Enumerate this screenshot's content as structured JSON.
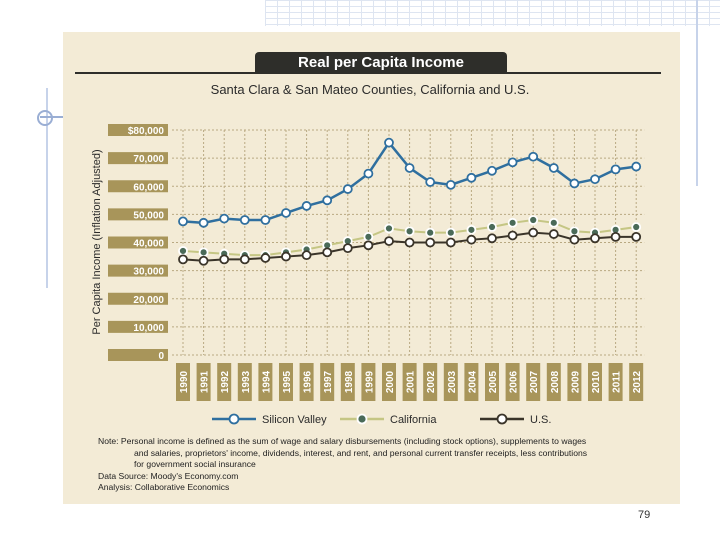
{
  "page_number": "79",
  "colors": {
    "silicon_valley": "#2f6f9f",
    "california": "#c5c684",
    "us": "#3a3429",
    "tick_label_bg": "#a8955a",
    "panel_bg": "#f3ebd6"
  },
  "notes": {
    "note_lead": "Note: Personal income is defined as the sum of wage and salary disbursements (including stock options), supplements to wages",
    "note_line2": "and salaries, proprietors' income, dividends, interest, and rent, and personal current transfer receipts, less contributions",
    "note_line3": "for government social insurance",
    "data_source": "Data Source: Moody's Economy.com",
    "analysis": "Analysis: Collaborative Economics"
  },
  "chart_data": {
    "type": "line",
    "title": "Real per Capita Income",
    "subtitle": "Santa Clara & San Mateo Counties, California and U.S.",
    "ylabel": "Per Capita Income (Inflation Adjusted)",
    "xlabel": "",
    "ylim": [
      0,
      80000
    ],
    "y_ticks": [
      "0",
      "10,000",
      "20,000",
      "30,000",
      "40,000",
      "50,000",
      "60,000",
      "70,000",
      "$80,000"
    ],
    "categories": [
      "1990",
      "1991",
      "1992",
      "1993",
      "1994",
      "1995",
      "1996",
      "1997",
      "1998",
      "1999",
      "2000",
      "2001",
      "2002",
      "2003",
      "2004",
      "2005",
      "2006",
      "2007",
      "2008",
      "2009",
      "2010",
      "2011",
      "2012"
    ],
    "grid": true,
    "legend_position": "bottom",
    "series": [
      {
        "name": "Silicon Valley",
        "values": [
          47500,
          47000,
          48500,
          48000,
          48000,
          50500,
          53000,
          55000,
          59000,
          64500,
          75500,
          66500,
          61500,
          60500,
          63000,
          65500,
          68500,
          70500,
          66500,
          61000,
          62500,
          66000,
          67000
        ]
      },
      {
        "name": "California",
        "values": [
          37000,
          36500,
          36000,
          35500,
          35500,
          36500,
          37500,
          39000,
          40500,
          42000,
          45000,
          44000,
          43500,
          43500,
          44500,
          45500,
          47000,
          48000,
          47000,
          44000,
          43500,
          44500,
          45500
        ]
      },
      {
        "name": "U.S.",
        "values": [
          34000,
          33500,
          34000,
          34000,
          34500,
          35000,
          35500,
          36500,
          38000,
          39000,
          40500,
          40000,
          40000,
          40000,
          41000,
          41500,
          42500,
          43500,
          43000,
          41000,
          41500,
          42000,
          42000
        ]
      }
    ]
  }
}
